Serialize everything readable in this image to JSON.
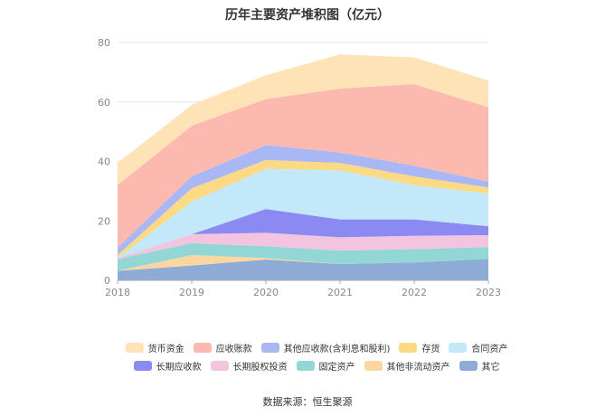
{
  "title": "历年主要资产堆积图（亿元）",
  "source": "数据来源：恒生聚源",
  "chart_data": {
    "type": "area",
    "stacked": true,
    "categories": [
      "2018",
      "2019",
      "2020",
      "2021",
      "2022",
      "2023"
    ],
    "ylim": [
      0,
      80
    ],
    "yticks": [
      0,
      20,
      40,
      60,
      80
    ],
    "grid": true,
    "legend_position": "bottom",
    "series": [
      {
        "name": "其它",
        "color": "#8eaad6",
        "values": [
          3.2,
          5.0,
          7.0,
          5.5,
          6.0,
          7.2
        ]
      },
      {
        "name": "其他非流动资产",
        "color": "#fcd6a0",
        "values": [
          0.0,
          3.5,
          0.5,
          0.0,
          0.0,
          0.0
        ]
      },
      {
        "name": "固定资产",
        "color": "#92d6d6",
        "values": [
          4.0,
          4.0,
          4.0,
          4.5,
          4.5,
          4.0
        ]
      },
      {
        "name": "长期股权投资",
        "color": "#f2c4e0",
        "values": [
          0.3,
          3.0,
          4.5,
          4.5,
          4.5,
          4.0
        ]
      },
      {
        "name": "长期应收款",
        "color": "#8b8af2",
        "values": [
          0.0,
          0.0,
          8.0,
          6.0,
          5.5,
          3.0
        ]
      },
      {
        "name": "合同资产",
        "color": "#c2e8fa",
        "values": [
          0.0,
          11.0,
          13.5,
          16.5,
          11.5,
          11.0
        ]
      },
      {
        "name": "存货",
        "color": "#fcd985",
        "values": [
          1.0,
          4.5,
          3.0,
          2.5,
          3.0,
          2.0
        ]
      },
      {
        "name": "其他应收款(含利息和股利)",
        "color": "#a9b8f5",
        "values": [
          2.5,
          4.0,
          5.0,
          3.5,
          3.5,
          2.0
        ]
      },
      {
        "name": "应收账款",
        "color": "#fbb9b0",
        "values": [
          21.0,
          17.0,
          15.5,
          21.5,
          27.5,
          25.0
        ]
      },
      {
        "name": "货币资金",
        "color": "#fde3b6",
        "values": [
          7.5,
          7.0,
          8.0,
          11.5,
          9.0,
          9.0
        ]
      }
    ]
  },
  "legend": {
    "row1": [
      {
        "label": "货币资金",
        "color": "#fde3b6"
      },
      {
        "label": "应收账款",
        "color": "#fbb9b0"
      },
      {
        "label": "其他应收款(含利息和股利)",
        "color": "#a9b8f5"
      },
      {
        "label": "存货",
        "color": "#fcd985"
      },
      {
        "label": "合同资产",
        "color": "#c2e8fa"
      }
    ],
    "row2": [
      {
        "label": "长期应收款",
        "color": "#8b8af2"
      },
      {
        "label": "长期股权投资",
        "color": "#f2c4e0"
      },
      {
        "label": "固定资产",
        "color": "#92d6d6"
      },
      {
        "label": "其他非流动资产",
        "color": "#fcd6a0"
      },
      {
        "label": "其它",
        "color": "#8eaad6"
      }
    ]
  }
}
